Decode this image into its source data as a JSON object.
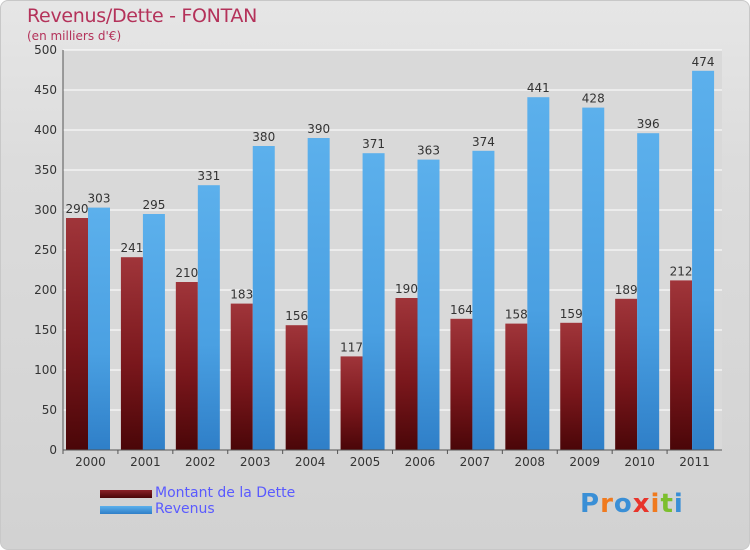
{
  "header": {
    "title": "Revenus/Dette - FONTAN",
    "subtitle": "(en milliers d'€)"
  },
  "legend": {
    "items": [
      {
        "label": "Montant de la Dette",
        "color": "#6b0f12"
      },
      {
        "label": "Revenus",
        "color": "#4aa3e6"
      }
    ]
  },
  "brand": {
    "letters": [
      "P",
      "r",
      "o",
      "x",
      "i",
      "t",
      "i"
    ],
    "colors": [
      "#3a8fd6",
      "#f07a1e",
      "#3a8fd6",
      "#e8342b",
      "#f07a1e",
      "#7cbf2e",
      "#3a8fd6"
    ]
  },
  "chart_data": {
    "type": "bar",
    "title": "Revenus/Dette - FONTAN",
    "subtitle": "(en milliers d'€)",
    "categories": [
      "2000",
      "2001",
      "2002",
      "2003",
      "2004",
      "2005",
      "2006",
      "2007",
      "2008",
      "2009",
      "2010",
      "2011"
    ],
    "series": [
      {
        "name": "Montant de la Dette",
        "color": "#6b0f12",
        "values": [
          290,
          241,
          210,
          183,
          156,
          117,
          190,
          164,
          158,
          159,
          189,
          212
        ]
      },
      {
        "name": "Revenus",
        "color": "#4aa3e6",
        "values": [
          303,
          295,
          331,
          380,
          390,
          371,
          363,
          374,
          441,
          428,
          396,
          474
        ]
      }
    ],
    "ylim": [
      0,
      500
    ],
    "yticks": [
      0,
      50,
      100,
      150,
      200,
      250,
      300,
      350,
      400,
      450,
      500
    ],
    "grid": true,
    "legend_position": "bottom-left"
  }
}
